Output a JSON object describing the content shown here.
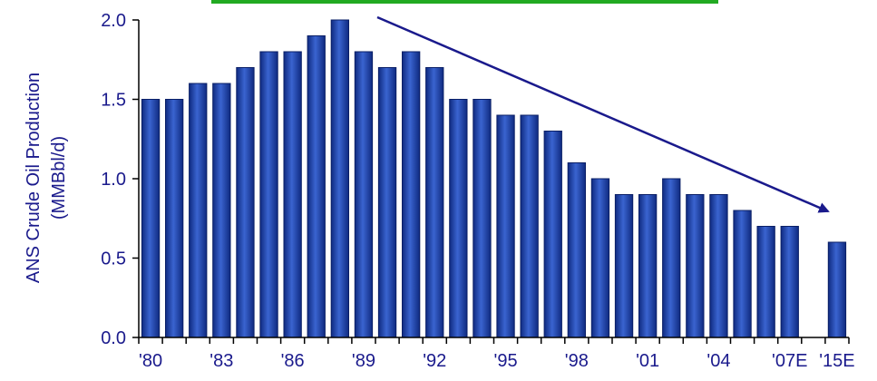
{
  "chart_data": {
    "type": "bar",
    "ylabel_line1": "ANS Crude Oil Production",
    "ylabel_line2": "(MMBbl/d)",
    "ylim": [
      0,
      2.0
    ],
    "yticks": [
      "0.0",
      "0.5",
      "1.0",
      "1.5",
      "2.0"
    ],
    "ytick_values": [
      0,
      0.5,
      1.0,
      1.5,
      2.0
    ],
    "categories": [
      "1980",
      "1981",
      "1982",
      "1983",
      "1984",
      "1985",
      "1986",
      "1987",
      "1988",
      "1989",
      "1990",
      "1991",
      "1992",
      "1993",
      "1994",
      "1995",
      "1996",
      "1997",
      "1998",
      "1999",
      "2000",
      "2001",
      "2002",
      "2003",
      "2004",
      "2005",
      "2006",
      "2007E",
      "2015E"
    ],
    "values": [
      1.5,
      1.5,
      1.6,
      1.6,
      1.7,
      1.8,
      1.8,
      1.9,
      2.0,
      1.8,
      1.7,
      1.8,
      1.7,
      1.5,
      1.5,
      1.4,
      1.4,
      1.3,
      1.1,
      1.0,
      0.9,
      0.9,
      1.0,
      0.9,
      0.9,
      0.8,
      0.7,
      0.7,
      0.6
    ],
    "slots": [
      0,
      1,
      2,
      3,
      4,
      5,
      6,
      7,
      8,
      9,
      10,
      11,
      12,
      13,
      14,
      15,
      16,
      17,
      18,
      19,
      20,
      21,
      22,
      23,
      24,
      25,
      26,
      27,
      29
    ],
    "xtick_labels": [
      {
        "slot": 0,
        "text": "'80"
      },
      {
        "slot": 3,
        "text": "'83"
      },
      {
        "slot": 6,
        "text": "'86"
      },
      {
        "slot": 9,
        "text": "'89"
      },
      {
        "slot": 12,
        "text": "'92"
      },
      {
        "slot": 15,
        "text": "'95"
      },
      {
        "slot": 18,
        "text": "'98"
      },
      {
        "slot": 21,
        "text": "'01"
      },
      {
        "slot": 24,
        "text": "'04"
      },
      {
        "slot": 27,
        "text": "'07E"
      },
      {
        "slot": 29,
        "text": "'15E"
      }
    ],
    "bar_color": "#1a3aa0",
    "bar_color_light": "#3a64d0",
    "axis_text_color": "#1a1a8c",
    "trend_color": "#1a1a8c",
    "banner_color": "#22aa22",
    "grid": false
  }
}
